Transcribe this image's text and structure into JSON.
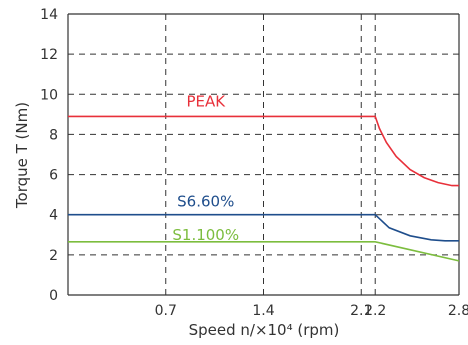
{
  "chart_data": {
    "type": "line",
    "title": "",
    "xlabel": "Speed  n/×10⁴ (rpm)",
    "ylabel": "Torque T (Nm)",
    "xlim": [
      0,
      2.8
    ],
    "ylim": [
      0,
      14
    ],
    "x_ticks": [
      {
        "value": 0.7,
        "label": "0.7"
      },
      {
        "value": 1.4,
        "label": "1.4"
      },
      {
        "value": 2.1,
        "label": "2.1"
      },
      {
        "value": 2.2,
        "label": "2.2"
      },
      {
        "value": 2.8,
        "label": "2.8"
      }
    ],
    "y_ticks": [
      {
        "value": 0,
        "label": "0"
      },
      {
        "value": 2,
        "label": "2"
      },
      {
        "value": 4,
        "label": "4"
      },
      {
        "value": 6,
        "label": "6"
      },
      {
        "value": 8,
        "label": "8"
      },
      {
        "value": 10,
        "label": "10"
      },
      {
        "value": 12,
        "label": "12"
      },
      {
        "value": 14,
        "label": "14"
      }
    ],
    "grid": true,
    "legend": "none",
    "series": [
      {
        "name": "PEAK",
        "color": "#e8303a",
        "label_at": [
          0.7,
          9.4
        ],
        "x": [
          0,
          2.2,
          2.23,
          2.28,
          2.35,
          2.45,
          2.55,
          2.65,
          2.75,
          2.8
        ],
        "y": [
          8.9,
          8.9,
          8.3,
          7.6,
          6.9,
          6.25,
          5.85,
          5.6,
          5.45,
          5.45
        ]
      },
      {
        "name": "S6.60%",
        "color": "#1f4e8c",
        "label_at": [
          0.7,
          4.4
        ],
        "x": [
          0,
          2.2,
          2.3,
          2.45,
          2.6,
          2.7,
          2.8
        ],
        "y": [
          4.0,
          4.0,
          3.35,
          2.95,
          2.75,
          2.7,
          2.7
        ]
      },
      {
        "name": "S1.100%",
        "color": "#7cbd3e",
        "label_at": [
          0.7,
          2.75
        ],
        "x": [
          0,
          2.2,
          2.8
        ],
        "y": [
          2.65,
          2.65,
          1.7
        ]
      }
    ]
  }
}
